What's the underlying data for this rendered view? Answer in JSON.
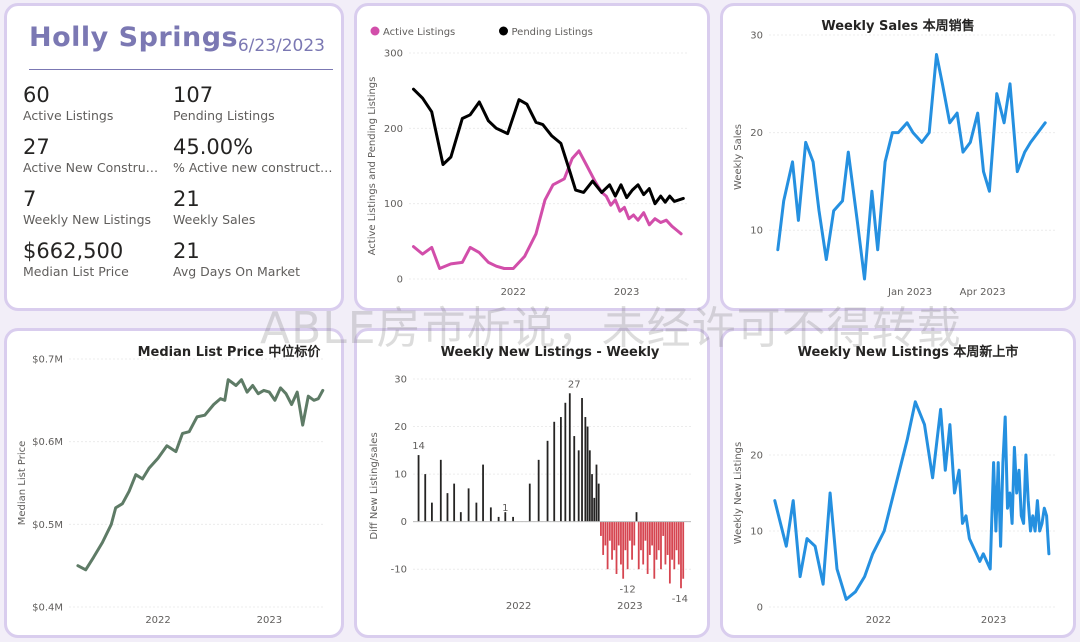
{
  "kpi_card": {
    "city": "Holly Springs",
    "date": "6/23/2023",
    "metrics": [
      {
        "value": "60",
        "label": "Active Listings"
      },
      {
        "value": "107",
        "label": "Pending Listings"
      },
      {
        "value": "27",
        "label": "Active New Constructions"
      },
      {
        "value": "45.00%",
        "label": "% Active new constructions"
      },
      {
        "value": "7",
        "label": "Weekly New Listings"
      },
      {
        "value": "21",
        "label": "Weekly Sales"
      },
      {
        "value": "$662,500",
        "label": "Median List Price"
      },
      {
        "value": "21",
        "label": "Avg Days On Market"
      }
    ]
  },
  "watermark": "ABLE房市析说，未经许可不得转载",
  "colors": {
    "active": "#d24eaa",
    "pending": "#000000",
    "blue": "#2590e0",
    "green": "#5e7b66",
    "neg": "#d64550",
    "pos": "#252423"
  },
  "chart_data": [
    {
      "id": "active_pending",
      "type": "line",
      "title": "",
      "ylabel": "Active Listings and Pending Listings",
      "ylim": [
        0,
        300
      ],
      "yticks": [
        0,
        100,
        200,
        300
      ],
      "xticks": [
        {
          "label": "2022",
          "x": 2022.0
        },
        {
          "label": "2023",
          "x": 2023.0
        }
      ],
      "xlim": [
        2021.08,
        2023.55
      ],
      "legend": "top",
      "series": [
        {
          "name": "Active Listings",
          "color": "#d24eaa",
          "x": [
            2021.12,
            2021.2,
            2021.28,
            2021.35,
            2021.45,
            2021.55,
            2021.62,
            2021.7,
            2021.78,
            2021.85,
            2021.92,
            2022.0,
            2022.1,
            2022.2,
            2022.28,
            2022.35,
            2022.45,
            2022.52,
            2022.58,
            2022.65,
            2022.72,
            2022.78,
            2022.82,
            2022.86,
            2022.9,
            2022.94,
            2022.98,
            2023.02,
            2023.06,
            2023.1,
            2023.15,
            2023.2,
            2023.25,
            2023.3,
            2023.35,
            2023.4,
            2023.44,
            2023.48
          ],
          "y": [
            43,
            33,
            42,
            14,
            20,
            22,
            42,
            35,
            22,
            17,
            14,
            14,
            30,
            60,
            105,
            125,
            133,
            160,
            170,
            150,
            130,
            115,
            110,
            98,
            105,
            90,
            95,
            80,
            85,
            78,
            88,
            72,
            80,
            75,
            78,
            70,
            65,
            60
          ]
        },
        {
          "name": "Pending Listings",
          "color": "#000000",
          "x": [
            2021.12,
            2021.2,
            2021.28,
            2021.38,
            2021.45,
            2021.55,
            2021.62,
            2021.7,
            2021.78,
            2021.85,
            2021.95,
            2022.05,
            2022.12,
            2022.2,
            2022.26,
            2022.34,
            2022.42,
            2022.5,
            2022.55,
            2022.62,
            2022.7,
            2022.78,
            2022.85,
            2022.9,
            2022.95,
            2023.0,
            2023.05,
            2023.1,
            2023.15,
            2023.2,
            2023.25,
            2023.3,
            2023.34,
            2023.38,
            2023.42,
            2023.46,
            2023.5
          ],
          "y": [
            252,
            240,
            222,
            152,
            162,
            213,
            218,
            235,
            210,
            200,
            193,
            238,
            232,
            208,
            205,
            190,
            180,
            142,
            118,
            115,
            130,
            115,
            125,
            110,
            125,
            108,
            118,
            125,
            112,
            120,
            100,
            110,
            102,
            110,
            103,
            105,
            107
          ]
        }
      ]
    },
    {
      "id": "weekly_sales",
      "type": "line",
      "title": "Weekly Sales 本周销售",
      "ylabel": "Weekly Sales",
      "ylim": [
        5,
        30
      ],
      "yticks": [
        10,
        20,
        30
      ],
      "xticks": [
        {
          "label": "Jan 2023",
          "x": 2023.0
        },
        {
          "label": "Apr 2023",
          "x": 2023.247
        }
      ],
      "xlim": [
        2022.52,
        2023.5
      ],
      "series": [
        {
          "name": "Weekly Sales",
          "color": "#2590e0",
          "x": [
            2022.55,
            2022.57,
            2022.6,
            2022.62,
            2022.645,
            2022.67,
            2022.69,
            2022.715,
            2022.74,
            2022.77,
            2022.79,
            2022.82,
            2022.845,
            2022.87,
            2022.89,
            2022.915,
            2022.94,
            2022.96,
            2022.99,
            2023.01,
            2023.04,
            2023.065,
            2023.09,
            2023.11,
            2023.135,
            2023.16,
            2023.18,
            2023.205,
            2023.23,
            2023.25,
            2023.27,
            2023.295,
            2023.32,
            2023.34,
            2023.365,
            2023.39,
            2023.41,
            2023.435,
            2023.46
          ],
          "y": [
            8,
            13,
            17,
            11,
            19,
            17,
            12,
            7,
            12,
            13,
            18,
            11,
            5,
            14,
            8,
            17,
            20,
            20,
            21,
            20,
            19,
            20,
            28,
            25,
            21,
            22,
            18,
            19,
            22,
            16,
            14,
            24,
            21,
            25,
            16,
            18,
            19,
            20,
            21
          ]
        }
      ]
    },
    {
      "id": "median_price",
      "type": "line",
      "title": "Median List Price 中位标价",
      "ylabel": "Median List Price",
      "ylim": [
        400000,
        700000
      ],
      "yticks": [
        {
          "label": "$0.4M",
          "v": 400000
        },
        {
          "label": "$0.5M",
          "v": 500000
        },
        {
          "label": "$0.6M",
          "v": 600000
        },
        {
          "label": "$0.7M",
          "v": 700000
        }
      ],
      "xticks": [
        {
          "label": "2022",
          "x": 2022.0
        },
        {
          "label": "2023",
          "x": 2023.0
        }
      ],
      "xlim": [
        2021.2,
        2023.5
      ],
      "series": [
        {
          "name": "Median List Price",
          "color": "#5e7b66",
          "x": [
            2021.28,
            2021.35,
            2021.42,
            2021.5,
            2021.58,
            2021.62,
            2021.68,
            2021.74,
            2021.8,
            2021.86,
            2021.92,
            2022.0,
            2022.08,
            2022.16,
            2022.22,
            2022.28,
            2022.35,
            2022.42,
            2022.5,
            2022.56,
            2022.6,
            2022.63,
            2022.66,
            2022.7,
            2022.75,
            2022.8,
            2022.85,
            2022.9,
            2022.95,
            2023.0,
            2023.05,
            2023.1,
            2023.15,
            2023.2,
            2023.25,
            2023.3,
            2023.35,
            2023.4,
            2023.44,
            2023.48
          ],
          "y": [
            450000,
            445000,
            460000,
            478000,
            500000,
            520000,
            525000,
            540000,
            560000,
            555000,
            568000,
            580000,
            595000,
            588000,
            610000,
            612000,
            630000,
            632000,
            645000,
            652000,
            650000,
            675000,
            672000,
            668000,
            675000,
            660000,
            668000,
            658000,
            662000,
            660000,
            650000,
            665000,
            658000,
            645000,
            660000,
            620000,
            655000,
            650000,
            652000,
            662000
          ]
        }
      ]
    },
    {
      "id": "weekly_new_diff",
      "type": "bar",
      "title": "Weekly New Listings - Weekly",
      "ylabel": "Diff New Listing/sales",
      "ylim": [
        -15,
        30
      ],
      "yticks": [
        -10,
        0,
        10,
        20,
        30
      ],
      "xticks": [
        {
          "label": "2022",
          "x": 2022.0
        },
        {
          "label": "2023",
          "x": 2023.0
        }
      ],
      "xlim": [
        2021.05,
        2023.55
      ],
      "data_labels": [
        {
          "label": "14",
          "x": 2021.1,
          "v": 14
        },
        {
          "label": "1",
          "x": 2021.88,
          "v": 1
        },
        {
          "label": "27",
          "x": 2022.5,
          "v": 27
        },
        {
          "label": "-12",
          "x": 2022.98,
          "v": -12
        },
        {
          "label": "-14",
          "x": 2023.45,
          "v": -14
        }
      ],
      "x": [
        2021.1,
        2021.16,
        2021.22,
        2021.3,
        2021.36,
        2021.42,
        2021.48,
        2021.55,
        2021.62,
        2021.68,
        2021.75,
        2021.82,
        2021.88,
        2021.95,
        2022.1,
        2022.18,
        2022.26,
        2022.32,
        2022.38,
        2022.42,
        2022.46,
        2022.5,
        2022.54,
        2022.57,
        2022.6,
        2022.62,
        2022.64,
        2022.66,
        2022.68,
        2022.7,
        2022.72,
        2022.74,
        2022.76,
        2022.78,
        2022.8,
        2022.82,
        2022.84,
        2022.86,
        2022.88,
        2022.9,
        2022.92,
        2022.94,
        2022.96,
        2022.98,
        2023.0,
        2023.02,
        2023.04,
        2023.06,
        2023.08,
        2023.1,
        2023.12,
        2023.14,
        2023.16,
        2023.18,
        2023.2,
        2023.22,
        2023.24,
        2023.26,
        2023.28,
        2023.3,
        2023.32,
        2023.34,
        2023.36,
        2023.38,
        2023.4,
        2023.42,
        2023.44,
        2023.46,
        2023.48
      ],
      "values": [
        14,
        10,
        4,
        13,
        6,
        8,
        2,
        7,
        4,
        12,
        3,
        1,
        2,
        1,
        8,
        13,
        17,
        21,
        22,
        25,
        27,
        18,
        15,
        26,
        22,
        20,
        15,
        10,
        5,
        12,
        8,
        -3,
        -7,
        -5,
        -10,
        -4,
        -8,
        -6,
        -11,
        -5,
        -9,
        -12,
        -6,
        -10,
        -4,
        -8,
        -5,
        2,
        -10,
        -6,
        -9,
        -4,
        -11,
        -7,
        -5,
        -12,
        -8,
        -6,
        -10,
        -3,
        -9,
        -7,
        -13,
        -8,
        -10,
        -6,
        -9,
        -14,
        -12
      ]
    },
    {
      "id": "weekly_new_listings",
      "type": "line",
      "title": "Weekly New Listings  本周新上市",
      "ylabel": "Weekly New Listings",
      "ylim": [
        0,
        30
      ],
      "yticks": [
        0,
        10,
        20
      ],
      "xticks": [
        {
          "label": "2022",
          "x": 2022.0
        },
        {
          "label": "2023",
          "x": 2023.0
        }
      ],
      "xlim": [
        2021.05,
        2023.55
      ],
      "series": [
        {
          "name": "Weekly New Listings",
          "color": "#2590e0",
          "x": [
            2021.1,
            2021.15,
            2021.2,
            2021.26,
            2021.32,
            2021.38,
            2021.45,
            2021.52,
            2021.58,
            2021.64,
            2021.72,
            2021.8,
            2021.88,
            2021.95,
            2022.05,
            2022.15,
            2022.25,
            2022.32,
            2022.4,
            2022.47,
            2022.54,
            2022.58,
            2022.62,
            2022.66,
            2022.7,
            2022.73,
            2022.76,
            2022.79,
            2022.82,
            2022.85,
            2022.88,
            2022.91,
            2022.94,
            2022.97,
            2023.0,
            2023.02,
            2023.04,
            2023.06,
            2023.08,
            2023.1,
            2023.12,
            2023.14,
            2023.16,
            2023.18,
            2023.2,
            2023.22,
            2023.24,
            2023.26,
            2023.28,
            2023.3,
            2023.32,
            2023.34,
            2023.36,
            2023.38,
            2023.4,
            2023.42,
            2023.44,
            2023.46,
            2023.48
          ],
          "y": [
            14,
            11,
            8,
            14,
            4,
            9,
            8,
            3,
            15,
            5,
            1,
            2,
            4,
            7,
            10,
            16,
            22,
            27,
            24,
            17,
            26,
            18,
            24,
            15,
            18,
            11,
            12,
            9,
            8,
            7,
            6,
            7,
            6,
            5,
            19,
            10,
            19,
            8,
            19,
            25,
            13,
            15,
            11,
            21,
            15,
            18,
            12,
            11,
            20,
            14,
            10,
            12,
            10,
            14,
            10,
            11,
            13,
            12,
            7
          ]
        }
      ]
    }
  ]
}
